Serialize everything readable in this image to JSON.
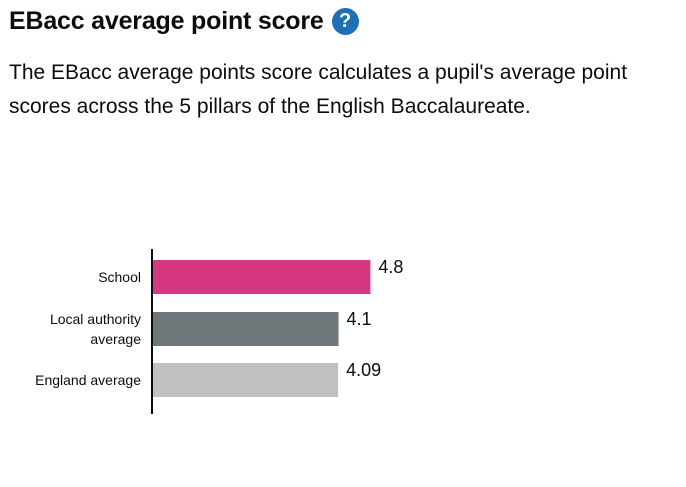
{
  "header": {
    "title": "EBacc average point score",
    "help_glyph": "?",
    "help_icon": "question-circle-icon"
  },
  "description": "The EBacc average points score calculates a pupil's average point scores across the 5 pillars of the English Baccalaureate.",
  "colors": {
    "accent": "#1d70b8",
    "school": "#d53880",
    "local_authority": "#6f777b",
    "england": "#bfc1c3",
    "axis": "#0b0c0c"
  },
  "chart_data": {
    "type": "bar",
    "orientation": "horizontal",
    "title": "",
    "xlabel": "",
    "ylabel": "",
    "xlim": [
      0,
      6
    ],
    "grid": false,
    "categories": [
      {
        "lines": [
          "School"
        ],
        "value": 4.8,
        "value_label": "4.8",
        "color": "#d53880"
      },
      {
        "lines": [
          "Local authority",
          "average"
        ],
        "value": 4.1,
        "value_label": "4.1",
        "color": "#6f777b"
      },
      {
        "lines": [
          "England average"
        ],
        "value": 4.09,
        "value_label": "4.09",
        "color": "#bfc1c3"
      }
    ]
  }
}
